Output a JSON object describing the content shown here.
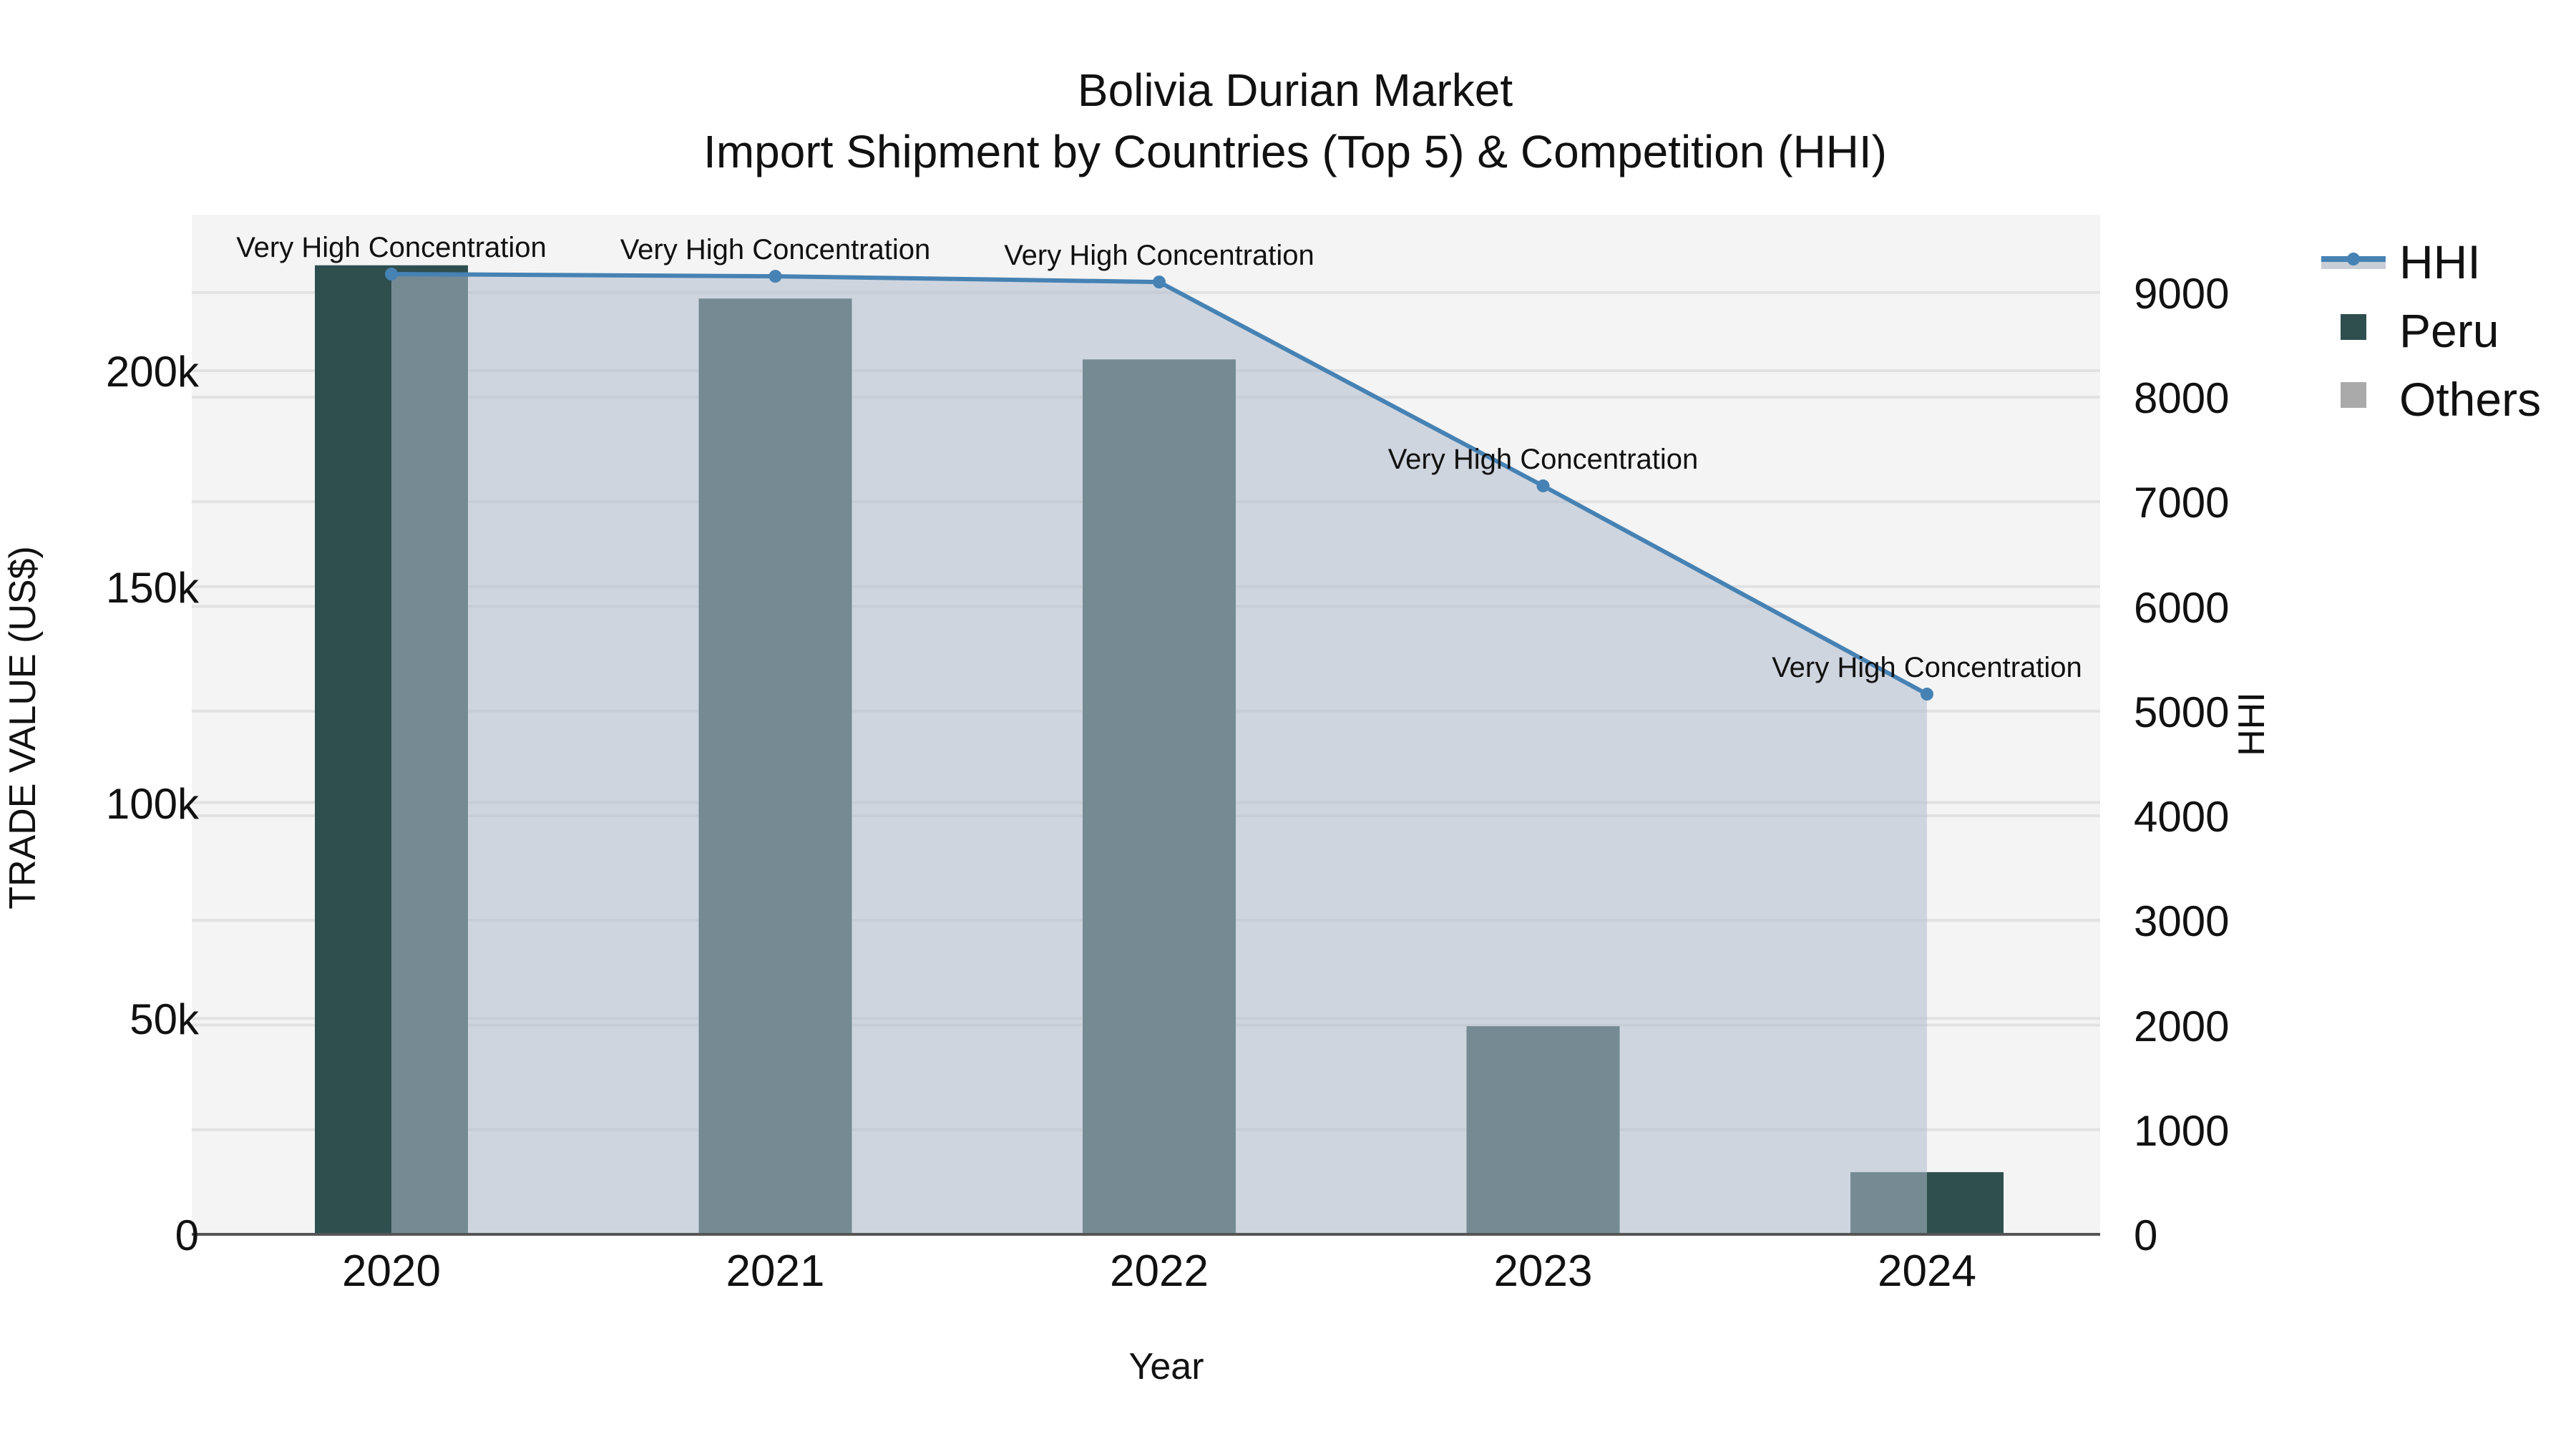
{
  "title": {
    "line1": "Bolivia Durian Market",
    "line2": "Import Shipment by Countries (Top 5) & Competition (HHI)"
  },
  "axes": {
    "x_title": "Year",
    "y_left_title": "TRADE VALUE (US$)",
    "y_right_title": "HHI",
    "x_ticks": [
      "2020",
      "2021",
      "2022",
      "2023",
      "2024"
    ],
    "y_left_ticks": [
      "0",
      "50k",
      "100k",
      "150k",
      "200k"
    ],
    "y_right_ticks": [
      "0",
      "1000",
      "2000",
      "3000",
      "4000",
      "5000",
      "6000",
      "7000",
      "8000",
      "9000"
    ]
  },
  "legend": {
    "items": [
      {
        "label": "HHI",
        "color": "#4682b4"
      },
      {
        "label": "Peru",
        "color": "#2f4f4f"
      },
      {
        "label": "Others",
        "color": "#aaaaaa"
      }
    ]
  },
  "annotations": [
    "Very High Concentration",
    "Very High Concentration",
    "Very High Concentration",
    "Very High Concentration",
    "Very High Concentration"
  ],
  "colors": {
    "peru": "#2f4f4f",
    "others": "#aaaaaa",
    "hhi_line": "#4682b4",
    "hhi_fill": "rgba(176,188,205,0.55)",
    "plot_bg": "#f4f4f4"
  },
  "chart_data": {
    "type": "bar",
    "title": "Bolivia Durian Market — Import Shipment by Countries (Top 5) & Competition (HHI)",
    "xlabel": "Year",
    "ylabel": "TRADE VALUE (US$)",
    "y2label": "HHI",
    "categories": [
      "2020",
      "2021",
      "2022",
      "2023",
      "2024"
    ],
    "series": [
      {
        "name": "Peru",
        "type": "bar",
        "axis": "left",
        "values": [
          224400,
          216700,
          202600,
          48200,
          14400
        ]
      },
      {
        "name": "Others",
        "type": "bar",
        "axis": "left",
        "values": [
          0,
          0,
          0,
          0,
          0
        ]
      },
      {
        "name": "HHI",
        "type": "line+area",
        "axis": "right",
        "values": [
          9176,
          9155,
          9100,
          7152,
          5162
        ],
        "labels": [
          "Very High Concentration",
          "Very High Concentration",
          "Very High Concentration",
          "Very High Concentration",
          "Very High Concentration"
        ]
      }
    ],
    "ylim": [
      0,
      235000
    ],
    "y2lim": [
      0,
      9750
    ],
    "grid": true,
    "legend_position": "top-right, outside plot"
  }
}
